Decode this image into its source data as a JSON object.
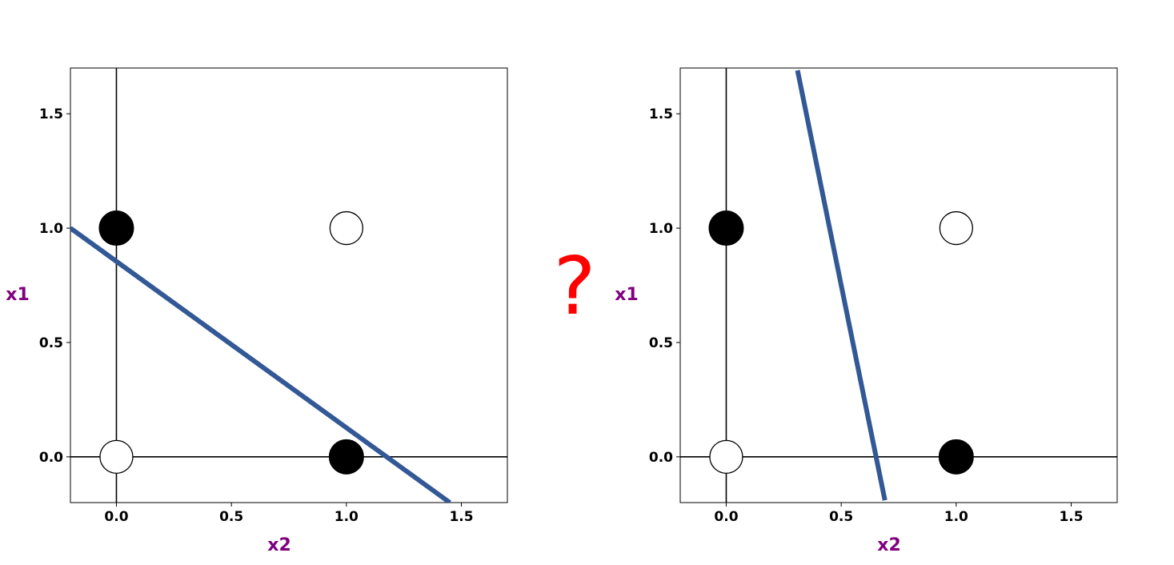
{
  "chart_data": [
    {
      "type": "scatter",
      "title": "",
      "xlabel": "x2",
      "ylabel": "x1",
      "xlim": [
        -0.2,
        1.7
      ],
      "ylim": [
        -0.2,
        1.7
      ],
      "xticks": [
        "0.0",
        "0.5",
        "1.0",
        "1.5"
      ],
      "yticks": [
        "0.0",
        "0.5",
        "1.0",
        "1.5"
      ],
      "points": [
        {
          "x": 0,
          "y": 0,
          "filled": false
        },
        {
          "x": 0,
          "y": 1,
          "filled": true
        },
        {
          "x": 1,
          "y": 0,
          "filled": true
        },
        {
          "x": 1,
          "y": 1,
          "filled": false
        }
      ],
      "decision_line": {
        "x": [
          -0.2,
          1.45
        ],
        "y": [
          1.0,
          -0.2
        ]
      },
      "grid": false
    },
    {
      "type": "scatter",
      "title": "",
      "xlabel": "x2",
      "ylabel": "x1",
      "xlim": [
        -0.2,
        1.7
      ],
      "ylim": [
        -0.2,
        1.7
      ],
      "xticks": [
        "0.0",
        "0.5",
        "1.0",
        "1.5"
      ],
      "yticks": [
        "0.0",
        "0.5",
        "1.0",
        "1.5"
      ],
      "points": [
        {
          "x": 0,
          "y": 0,
          "filled": false
        },
        {
          "x": 0,
          "y": 1,
          "filled": true
        },
        {
          "x": 1,
          "y": 0,
          "filled": true
        },
        {
          "x": 1,
          "y": 1,
          "filled": false
        }
      ],
      "decision_line": {
        "x": [
          0.31,
          0.69
        ],
        "y": [
          1.69,
          -0.19
        ]
      },
      "grid": false
    }
  ],
  "separator": {
    "text": "?",
    "color": "#ff0000"
  },
  "colors": {
    "line": "#335896",
    "axis_title": "#800080",
    "marker": "#000000"
  }
}
